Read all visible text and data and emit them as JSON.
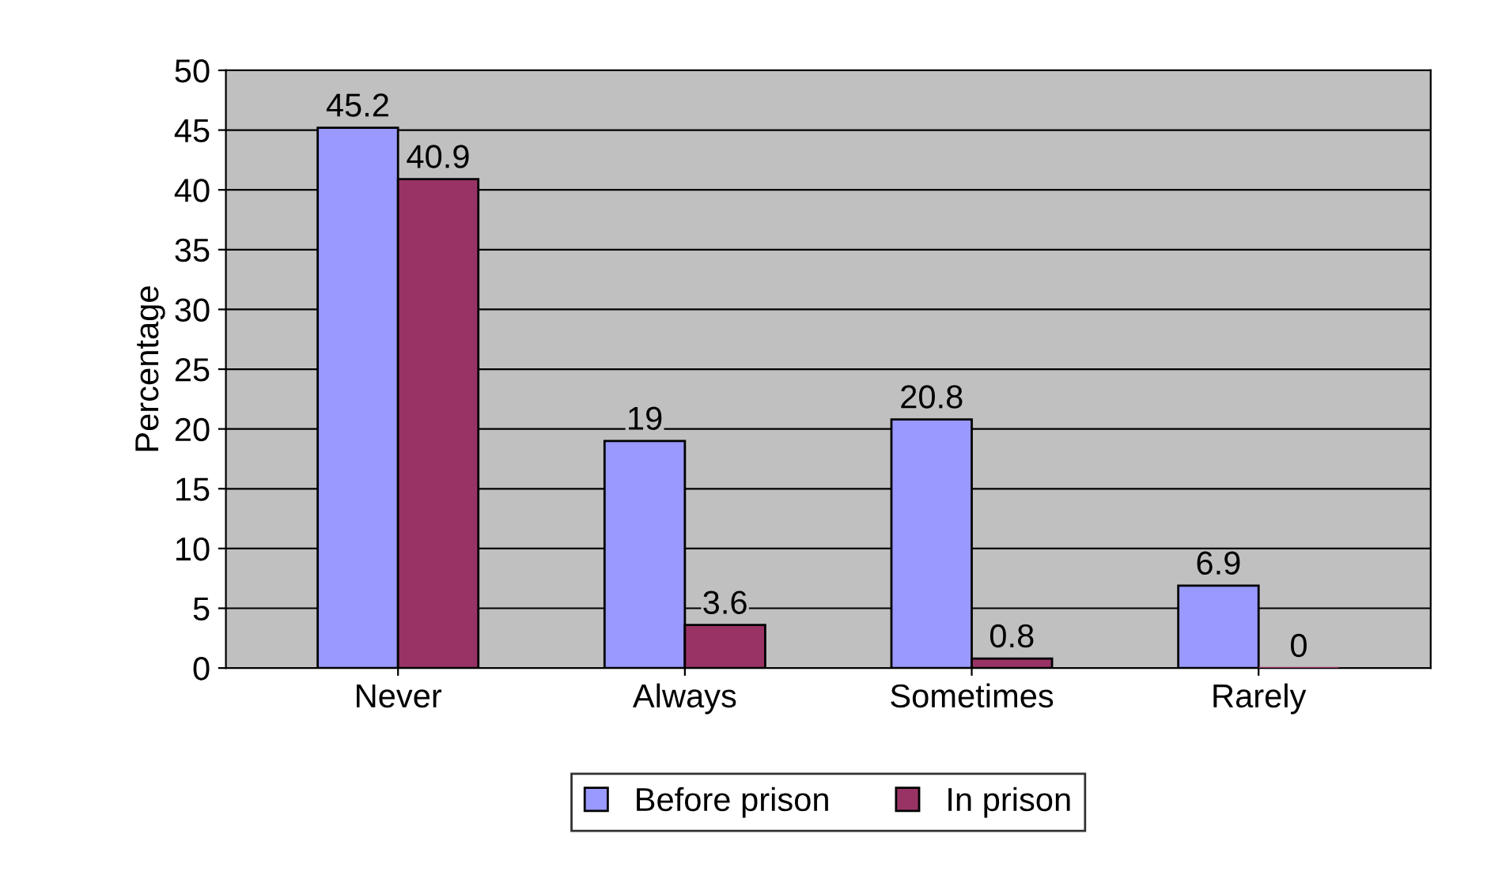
{
  "chart_data": {
    "type": "bar",
    "ylabel": "Percentage",
    "categories": [
      "Never",
      "Always",
      "Sometimes",
      "Rarely"
    ],
    "series": [
      {
        "name": "Before prison",
        "color": "#9999ff",
        "values": [
          45.2,
          19,
          20.8,
          6.9
        ]
      },
      {
        "name": "In prison",
        "color": "#993366",
        "values": [
          40.9,
          3.6,
          0.8,
          0
        ]
      }
    ],
    "ylim": [
      0,
      50
    ],
    "yticks": [
      0,
      5,
      10,
      15,
      20,
      25,
      30,
      35,
      40,
      45,
      50
    ],
    "grid": "y",
    "legend": "bottom",
    "data_labels": true
  }
}
